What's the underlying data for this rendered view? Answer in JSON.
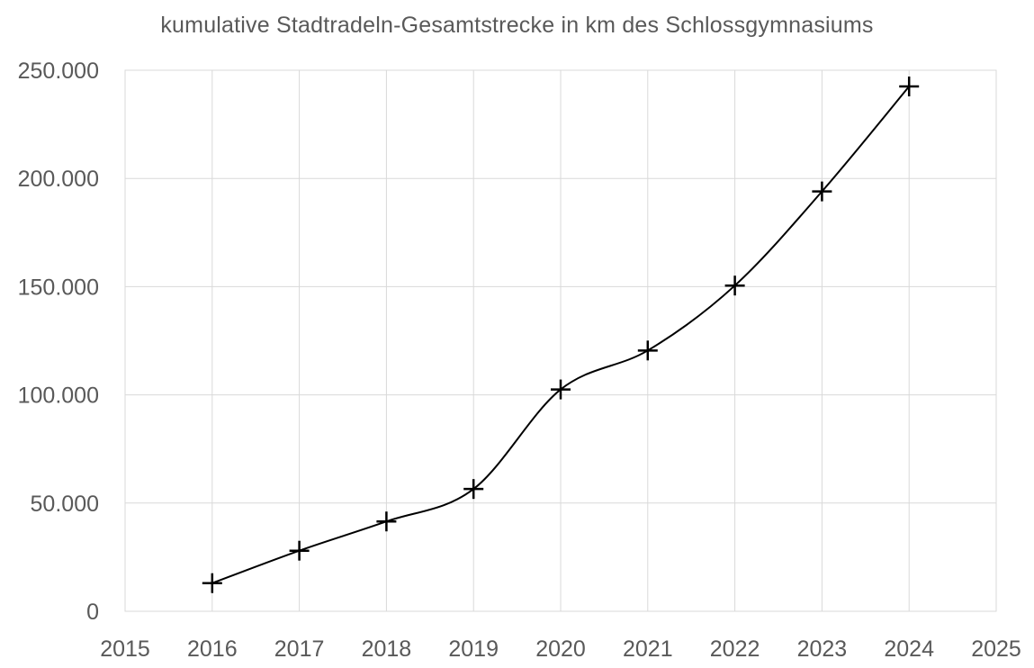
{
  "chart_data": {
    "type": "line",
    "title": "kumulative Stadtradeln-Gesamtstrecke in km des Schlossgymnasiums",
    "xlabel": "",
    "ylabel": "",
    "xlim": [
      2015,
      2025
    ],
    "ylim": [
      0,
      250000
    ],
    "x_ticks": [
      2015,
      2016,
      2017,
      2018,
      2019,
      2020,
      2021,
      2022,
      2023,
      2024,
      2025
    ],
    "x_tick_labels": [
      "2015",
      "2016",
      "2017",
      "2018",
      "2019",
      "2020",
      "2021",
      "2022",
      "2023",
      "2024",
      "2025"
    ],
    "y_ticks": [
      0,
      50000,
      100000,
      150000,
      200000,
      250000
    ],
    "y_tick_labels": [
      "0",
      "50.000",
      "100.000",
      "150.000",
      "200.000",
      "250.000"
    ],
    "grid": true,
    "smooth": true,
    "marker": "plus",
    "series": [
      {
        "x": [
          2016,
          2017,
          2018,
          2019,
          2020,
          2021,
          2022,
          2023,
          2024
        ],
        "values": [
          13000,
          28000,
          41500,
          56500,
          102500,
          120500,
          150500,
          194000,
          242500
        ],
        "color": "#000000"
      }
    ],
    "colors": {
      "grid": "#d9d9d9",
      "text": "#595959",
      "line": "#000000"
    }
  }
}
